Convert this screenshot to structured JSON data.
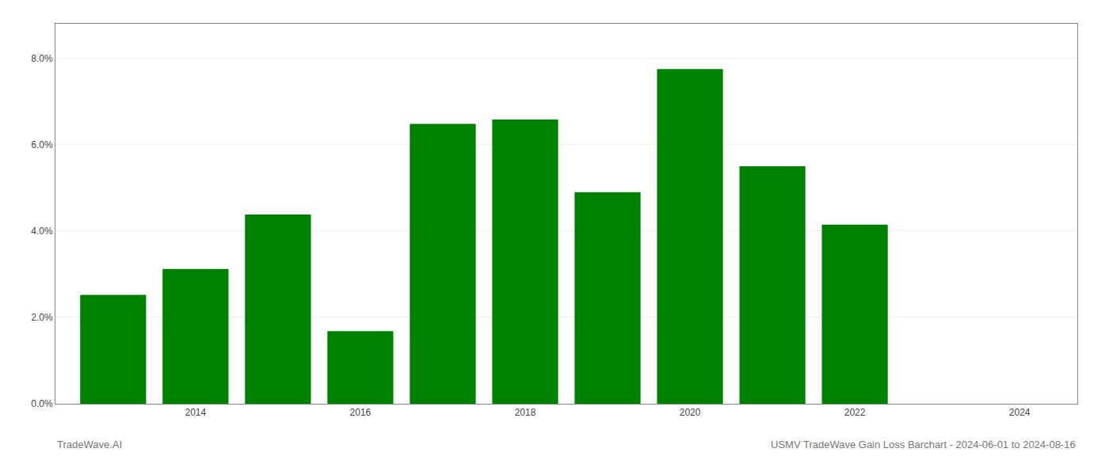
{
  "chart_data": {
    "type": "bar",
    "title": "USMV TradeWave Gain Loss Barchart - 2024-06-01 to 2024-08-16",
    "annotations": [
      "TradeWave.AI"
    ],
    "x": [
      2013,
      2014,
      2015,
      2016,
      2017,
      2018,
      2019,
      2020,
      2021,
      2022
    ],
    "values": [
      0.0252,
      0.0312,
      0.0438,
      0.0168,
      0.0648,
      0.0658,
      0.049,
      0.0775,
      0.055,
      0.0415
    ],
    "color": "#008000",
    "xlim": [
      2012.3,
      2024.7
    ],
    "xticks": [
      2014,
      2016,
      2018,
      2020,
      2022,
      2024
    ],
    "ylim": [
      0,
      0.088
    ],
    "yticks": [
      {
        "value": 0.0,
        "label": "0.0%"
      },
      {
        "value": 0.02,
        "label": "2.0%"
      },
      {
        "value": 0.04,
        "label": "4.0%"
      },
      {
        "value": 0.06,
        "label": "6.0%"
      },
      {
        "value": 0.08,
        "label": "8.0%"
      }
    ],
    "grid": true
  }
}
